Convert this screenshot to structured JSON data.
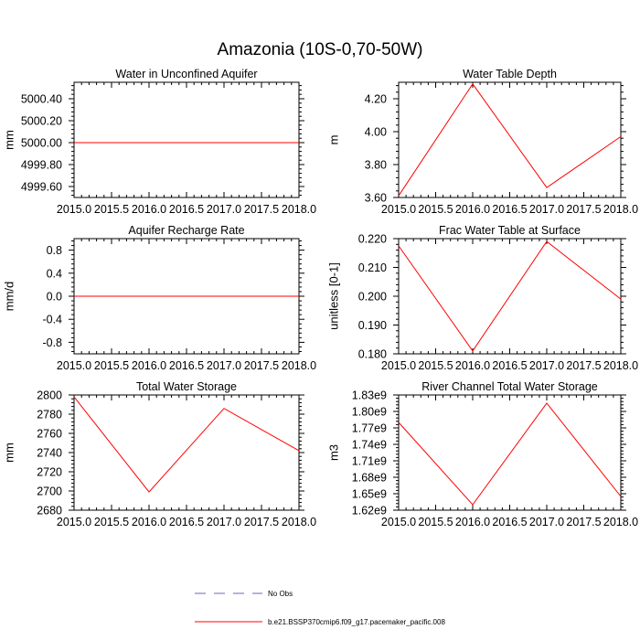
{
  "figure": {
    "title": "Amazonia (10S-0,70-50W)",
    "legend": [
      {
        "label": "No Obs",
        "color": "#7b5cc0",
        "dash": true
      },
      {
        "label": "b.e21.BSSP370cmip6.f09_g17.pacemaker_pacific.008",
        "color": "#ff0000",
        "dash": false
      }
    ]
  },
  "chart_data": [
    {
      "type": "line",
      "title": "Water in Unconfined Aquifer",
      "ylabel": "mm",
      "xlim": [
        2015.0,
        2018.0
      ],
      "ylim": [
        4999.5,
        5000.55
      ],
      "xticks": [
        2015.0,
        2015.5,
        2016.0,
        2016.5,
        2017.0,
        2017.5,
        2018.0
      ],
      "xtick_labels": [
        "2015.0",
        "2015.5",
        "2016.0",
        "2016.5",
        "2017.0",
        "2017.5",
        "2018.0"
      ],
      "yticks": [
        4999.6,
        4999.8,
        5000.0,
        5000.2,
        5000.4
      ],
      "ytick_labels": [
        "4999.60",
        "4999.80",
        "5000.00",
        "5000.20",
        "5000.40"
      ],
      "series": [
        {
          "x": [
            2015.0,
            2016.0,
            2017.0,
            2018.0
          ],
          "y": [
            5000.0,
            5000.0,
            5000.0,
            5000.0
          ],
          "color": "#ff0000"
        }
      ]
    },
    {
      "type": "line",
      "title": "Water Table Depth",
      "ylabel": "m",
      "xlim": [
        2015.0,
        2018.0
      ],
      "ylim": [
        3.6,
        4.3
      ],
      "xticks": [
        2015.0,
        2015.5,
        2016.0,
        2016.5,
        2017.0,
        2017.5,
        2018.0
      ],
      "xtick_labels": [
        "2015.0",
        "2015.5",
        "2016.0",
        "2016.5",
        "2017.0",
        "2017.5",
        "2018.0"
      ],
      "yticks": [
        3.6,
        3.8,
        4.0,
        4.2
      ],
      "ytick_labels": [
        "3.60",
        "3.80",
        "4.00",
        "4.20"
      ],
      "series": [
        {
          "x": [
            2015.0,
            2016.0,
            2017.0,
            2018.0
          ],
          "y": [
            3.61,
            4.29,
            3.66,
            3.97
          ],
          "color": "#ff0000"
        }
      ]
    },
    {
      "type": "line",
      "title": "Aquifer Recharge Rate",
      "ylabel": "mm/d",
      "xlim": [
        2015.0,
        2018.0
      ],
      "ylim": [
        -1.0,
        1.0
      ],
      "xticks": [
        2015.0,
        2015.5,
        2016.0,
        2016.5,
        2017.0,
        2017.5,
        2018.0
      ],
      "xtick_labels": [
        "2015.0",
        "2015.5",
        "2016.0",
        "2016.5",
        "2017.0",
        "2017.5",
        "2018.0"
      ],
      "yticks": [
        -0.8,
        -0.4,
        0.0,
        0.4,
        0.8
      ],
      "ytick_labels": [
        "-0.8",
        "-0.4",
        "0.0",
        "0.4",
        "0.8"
      ],
      "series": [
        {
          "x": [
            2015.0,
            2016.0,
            2017.0,
            2018.0
          ],
          "y": [
            0.0,
            0.0,
            0.0,
            0.0
          ],
          "color": "#ff0000"
        }
      ]
    },
    {
      "type": "line",
      "title": "Frac Water Table at Surface",
      "ylabel": "unitless [0-1]",
      "xlim": [
        2015.0,
        2018.0
      ],
      "ylim": [
        0.18,
        0.22
      ],
      "xticks": [
        2015.0,
        2015.5,
        2016.0,
        2016.5,
        2017.0,
        2017.5,
        2018.0
      ],
      "xtick_labels": [
        "2015.0",
        "2015.5",
        "2016.0",
        "2016.5",
        "2017.0",
        "2017.5",
        "2018.0"
      ],
      "yticks": [
        0.18,
        0.19,
        0.2,
        0.21,
        0.22
      ],
      "ytick_labels": [
        "0.180",
        "0.190",
        "0.200",
        "0.210",
        "0.220"
      ],
      "series": [
        {
          "x": [
            2015.0,
            2016.0,
            2017.0,
            2018.0
          ],
          "y": [
            0.2175,
            0.181,
            0.219,
            0.199
          ],
          "color": "#ff0000"
        }
      ]
    },
    {
      "type": "line",
      "title": "Total Water Storage",
      "ylabel": "mm",
      "xlim": [
        2015.0,
        2018.0
      ],
      "ylim": [
        2680,
        2800
      ],
      "xticks": [
        2015.0,
        2015.5,
        2016.0,
        2016.5,
        2017.0,
        2017.5,
        2018.0
      ],
      "xtick_labels": [
        "2015.0",
        "2015.5",
        "2016.0",
        "2016.5",
        "2017.0",
        "2017.5",
        "2018.0"
      ],
      "yticks": [
        2680,
        2700,
        2720,
        2740,
        2760,
        2780,
        2800
      ],
      "ytick_labels": [
        "2680",
        "2700",
        "2720",
        "2740",
        "2760",
        "2780",
        "2800"
      ],
      "series": [
        {
          "x": [
            2015.0,
            2016.0,
            2017.0,
            2018.0
          ],
          "y": [
            2798,
            2699,
            2786,
            2742
          ],
          "color": "#ff0000"
        }
      ]
    },
    {
      "type": "line",
      "title": "River Channel Total Water Storage",
      "ylabel": "m3",
      "xlim": [
        2015.0,
        2018.0
      ],
      "ylim": [
        1620000000.0,
        1830000000.0
      ],
      "xticks": [
        2015.0,
        2015.5,
        2016.0,
        2016.5,
        2017.0,
        2017.5,
        2018.0
      ],
      "xtick_labels": [
        "2015.0",
        "2015.5",
        "2016.0",
        "2016.5",
        "2017.0",
        "2017.5",
        "2018.0"
      ],
      "yticks": [
        1620000000.0,
        1650000000.0,
        1680000000.0,
        1710000000.0,
        1740000000.0,
        1770000000.0,
        1800000000.0,
        1830000000.0
      ],
      "ytick_labels": [
        "1.62e9",
        "1.65e9",
        "1.68e9",
        "1.71e9",
        "1.74e9",
        "1.77e9",
        "1.80e9",
        "1.83e9"
      ],
      "series": [
        {
          "x": [
            2015.0,
            2016.0,
            2017.0,
            2018.0
          ],
          "y": [
            1780000000.0,
            1630000000.0,
            1815000000.0,
            1645000000.0
          ],
          "color": "#ff0000"
        }
      ]
    }
  ]
}
